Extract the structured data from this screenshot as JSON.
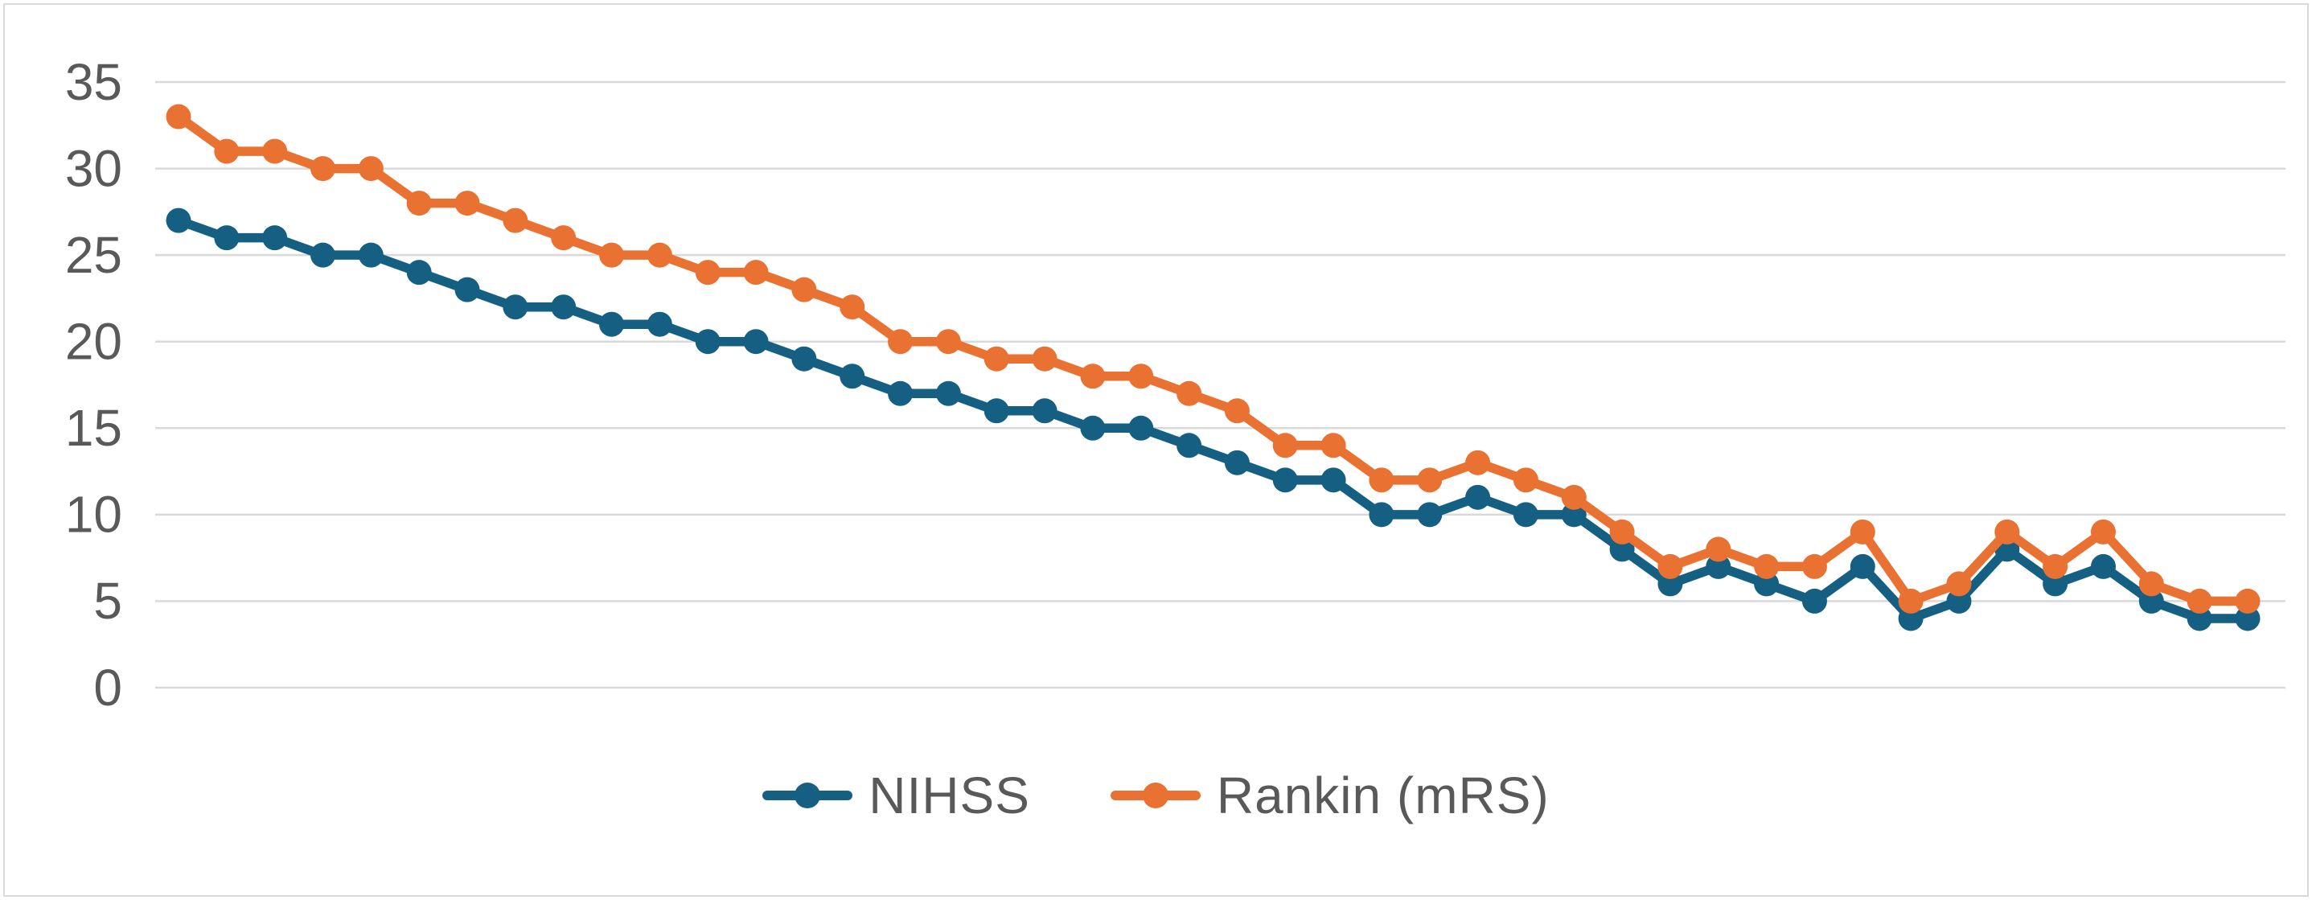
{
  "chart_data": {
    "type": "line",
    "title": "",
    "ylim": [
      0,
      35
    ],
    "y_ticks": [
      35,
      30,
      25,
      20,
      15,
      10,
      5,
      0
    ],
    "x_tick_labels_visible": false,
    "grid": true,
    "legend_position": "bottom",
    "n_points": 44,
    "series": [
      {
        "name": "NIHSS",
        "color": "#156082",
        "values": [
          27,
          26,
          26,
          25,
          25,
          24,
          23,
          22,
          22,
          21,
          21,
          20,
          20,
          19,
          18,
          17,
          17,
          16,
          16,
          15,
          15,
          14,
          13,
          12,
          12,
          10,
          10,
          11,
          10,
          10,
          8,
          6,
          7,
          6,
          5,
          7,
          4,
          5,
          8,
          6,
          7,
          5,
          4,
          4
        ]
      },
      {
        "name": "Rankin (mRS)",
        "color": "#E97132",
        "values": [
          33,
          31,
          31,
          30,
          30,
          28,
          28,
          27,
          26,
          25,
          25,
          24,
          24,
          23,
          22,
          20,
          20,
          19,
          19,
          18,
          18,
          17,
          16,
          14,
          14,
          12,
          12,
          13,
          12,
          11,
          9,
          7,
          8,
          7,
          7,
          9,
          5,
          6,
          9,
          7,
          9,
          6,
          5,
          5
        ]
      }
    ],
    "colors": {
      "gridline": "#d9d9d9",
      "tick_label": "#595959",
      "legend_label": "#595959",
      "chart_border": "#d9d9d9",
      "background": "#ffffff"
    }
  }
}
